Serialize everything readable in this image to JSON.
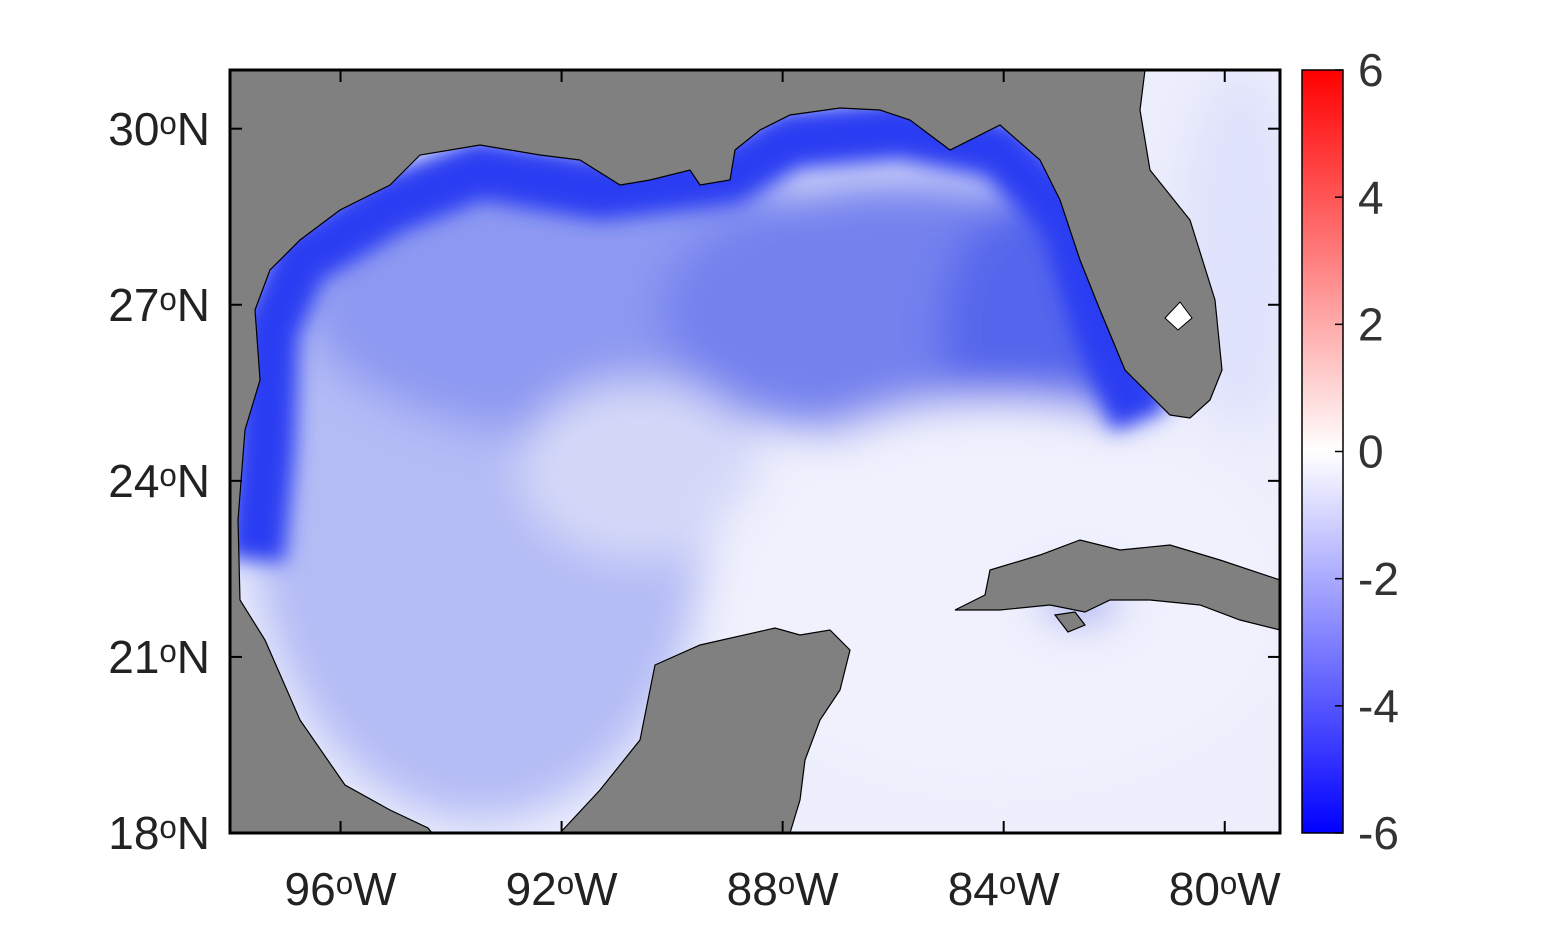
{
  "map": {
    "xlim": [
      -98,
      -79
    ],
    "ylim": [
      18,
      31
    ],
    "xticks": [
      {
        "value": -96,
        "label": "96ᵒW"
      },
      {
        "value": -92,
        "label": "92ᵒW"
      },
      {
        "value": -88,
        "label": "88ᵒW"
      },
      {
        "value": -84,
        "label": "84ᵒW"
      },
      {
        "value": -80,
        "label": "80ᵒW"
      }
    ],
    "yticks": [
      {
        "value": 18,
        "label": "18ᵒN"
      },
      {
        "value": 21,
        "label": "21ᵒN"
      },
      {
        "value": 24,
        "label": "24ᵒN"
      },
      {
        "value": 27,
        "label": "27ᵒN"
      },
      {
        "value": 30,
        "label": "30ᵒN"
      }
    ],
    "colorbar": {
      "range": [
        -6,
        6
      ],
      "ticks": [
        -6,
        -4,
        -2,
        0,
        2,
        4,
        6
      ]
    }
  }
}
